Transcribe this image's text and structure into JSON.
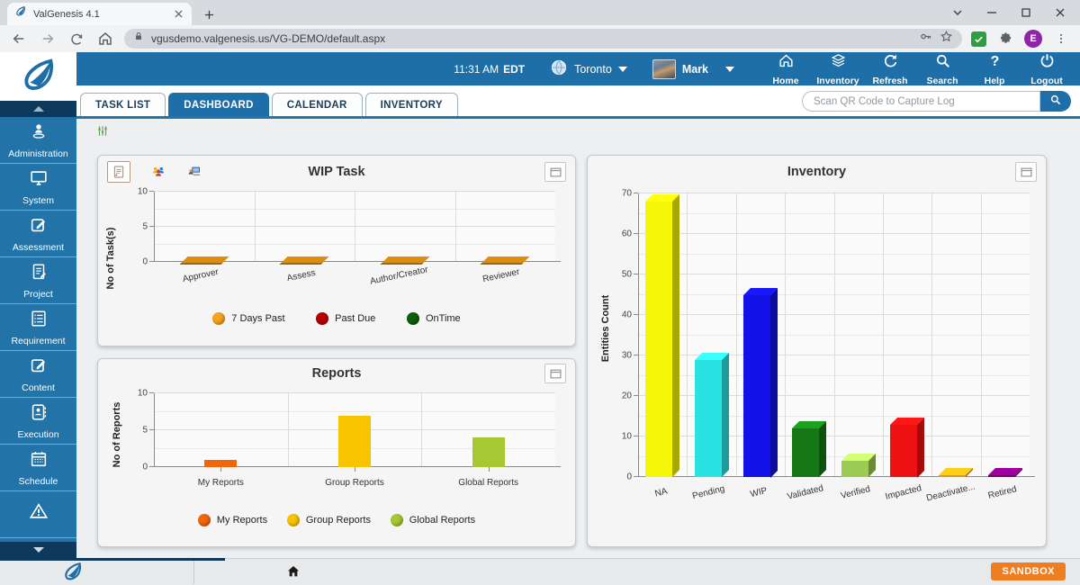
{
  "browser": {
    "tab_title": "ValGenesis 4.1",
    "url": "vgusdemo.valgenesis.us/VG-DEMO/default.aspx",
    "profile_initial": "E"
  },
  "header": {
    "time": "11:31 AM",
    "timezone": "EDT",
    "location": "Toronto",
    "user": "Mark",
    "nav": [
      {
        "id": "home",
        "icon": "home",
        "label": "Home"
      },
      {
        "id": "inventory",
        "icon": "layers",
        "label": "Inventory"
      },
      {
        "id": "refresh",
        "icon": "refresh",
        "label": "Refresh"
      },
      {
        "id": "search",
        "icon": "search",
        "label": "Search"
      },
      {
        "id": "help",
        "icon": "help",
        "label": "Help"
      },
      {
        "id": "logout",
        "icon": "power",
        "label": "Logout"
      }
    ]
  },
  "tabs": [
    {
      "label": "TASK LIST",
      "active": false
    },
    {
      "label": "DASHBOARD",
      "active": true
    },
    {
      "label": "CALENDAR",
      "active": false
    },
    {
      "label": "INVENTORY",
      "active": false
    }
  ],
  "qr_search": {
    "placeholder": "Scan QR Code to Capture Log"
  },
  "sidebar": {
    "items": [
      {
        "id": "administration",
        "icon": "person",
        "label": "Administration"
      },
      {
        "id": "system",
        "icon": "monitor",
        "label": "System"
      },
      {
        "id": "assessment",
        "icon": "edit",
        "label": "Assessment"
      },
      {
        "id": "project",
        "icon": "doc",
        "label": "Project"
      },
      {
        "id": "requirement",
        "icon": "list",
        "label": "Requirement"
      },
      {
        "id": "content",
        "icon": "edit",
        "label": "Content"
      },
      {
        "id": "execution",
        "icon": "card",
        "label": "Execution"
      },
      {
        "id": "schedule",
        "icon": "calendar",
        "label": "Schedule"
      },
      {
        "id": "risk",
        "icon": "warning",
        "label": ""
      }
    ]
  },
  "footer": {
    "sandbox_label": "SANDBOX"
  },
  "chart_data": [
    {
      "type": "bar",
      "variant": "3d-flat",
      "title": "WIP Task",
      "ylabel": "No of Task(s)",
      "ylim": [
        0,
        10
      ],
      "yticks": [
        0,
        5,
        10
      ],
      "categories": [
        "Approver",
        "Assess",
        "Author/Creator",
        "Reviewer"
      ],
      "series": [
        {
          "name": "7 Days Past",
          "color": "#F6A41C",
          "values": [
            0,
            0,
            0,
            0
          ]
        },
        {
          "name": "Past Due",
          "color": "#BB0000",
          "values": [
            0,
            0,
            0,
            0
          ]
        },
        {
          "name": "OnTime",
          "color": "#0D5E0D",
          "values": [
            0,
            0,
            0,
            0
          ]
        }
      ],
      "ground_pad_color": "#DD8E0F",
      "legend_position": "bottom",
      "grid": true
    },
    {
      "type": "bar",
      "title": "Reports",
      "ylabel": "No of Reports",
      "ylim": [
        0,
        10
      ],
      "yticks": [
        0,
        5,
        10
      ],
      "categories": [
        "My Reports",
        "Group Reports",
        "Global Reports"
      ],
      "values": [
        1,
        7,
        4
      ],
      "colors": [
        "#F2660A",
        "#F8C400",
        "#A6C832"
      ],
      "legend": [
        {
          "name": "My Reports",
          "color": "#F2660A"
        },
        {
          "name": "Group Reports",
          "color": "#F8C400"
        },
        {
          "name": "Global Reports",
          "color": "#A6C832"
        }
      ],
      "legend_position": "bottom",
      "grid": true
    },
    {
      "type": "bar",
      "variant": "3d",
      "title": "Inventory",
      "ylabel": "Entities Count",
      "ylim": [
        0,
        70
      ],
      "yticks": [
        0,
        10,
        20,
        30,
        40,
        50,
        60,
        70
      ],
      "categories": [
        "NA",
        "Pending",
        "WIP",
        "Validated",
        "Verified",
        "Impacted",
        "Deactivate...",
        "Retired"
      ],
      "values": [
        68,
        29,
        45,
        12,
        4,
        13,
        0.5,
        0.5
      ],
      "colors": [
        "#F6F608",
        "#2BE2E2",
        "#1212E8",
        "#157815",
        "#9CCB55",
        "#EE1111",
        "#DD9911",
        "#770077"
      ],
      "grid": true
    }
  ]
}
